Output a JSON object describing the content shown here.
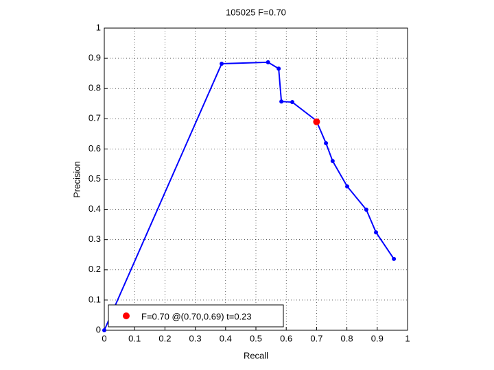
{
  "chart_data": {
    "type": "line",
    "title": "105025 F=0.70",
    "xlabel": "Recall",
    "ylabel": "Precision",
    "series": [
      {
        "color": "#0000ff",
        "marker": true,
        "x": [
          0,
          0.387,
          0.54,
          0.575,
          0.584,
          0.62,
          0.699,
          0.731,
          0.753,
          0.801,
          0.864,
          0.896,
          0.955
        ],
        "values": [
          0,
          0.882,
          0.887,
          0.866,
          0.757,
          0.755,
          0.694,
          0.619,
          0.56,
          0.476,
          0.399,
          0.324,
          0.236
        ]
      },
      {
        "name": "F=0.70 @(0.70,0.69) t=0.23",
        "color": "#ff0000",
        "marker": true,
        "line": false,
        "x": [
          0.7
        ],
        "values": [
          0.69
        ]
      }
    ],
    "xlim": [
      0,
      1
    ],
    "ylim": [
      0,
      1
    ],
    "xticks": [
      0,
      0.1,
      0.2,
      0.3,
      0.4,
      0.5,
      0.6,
      0.7,
      0.8,
      0.9,
      1
    ],
    "yticks": [
      0,
      0.1,
      0.2,
      0.3,
      0.4,
      0.5,
      0.6,
      0.7,
      0.8,
      0.9,
      1
    ],
    "grid": true,
    "legend": "lower left"
  }
}
